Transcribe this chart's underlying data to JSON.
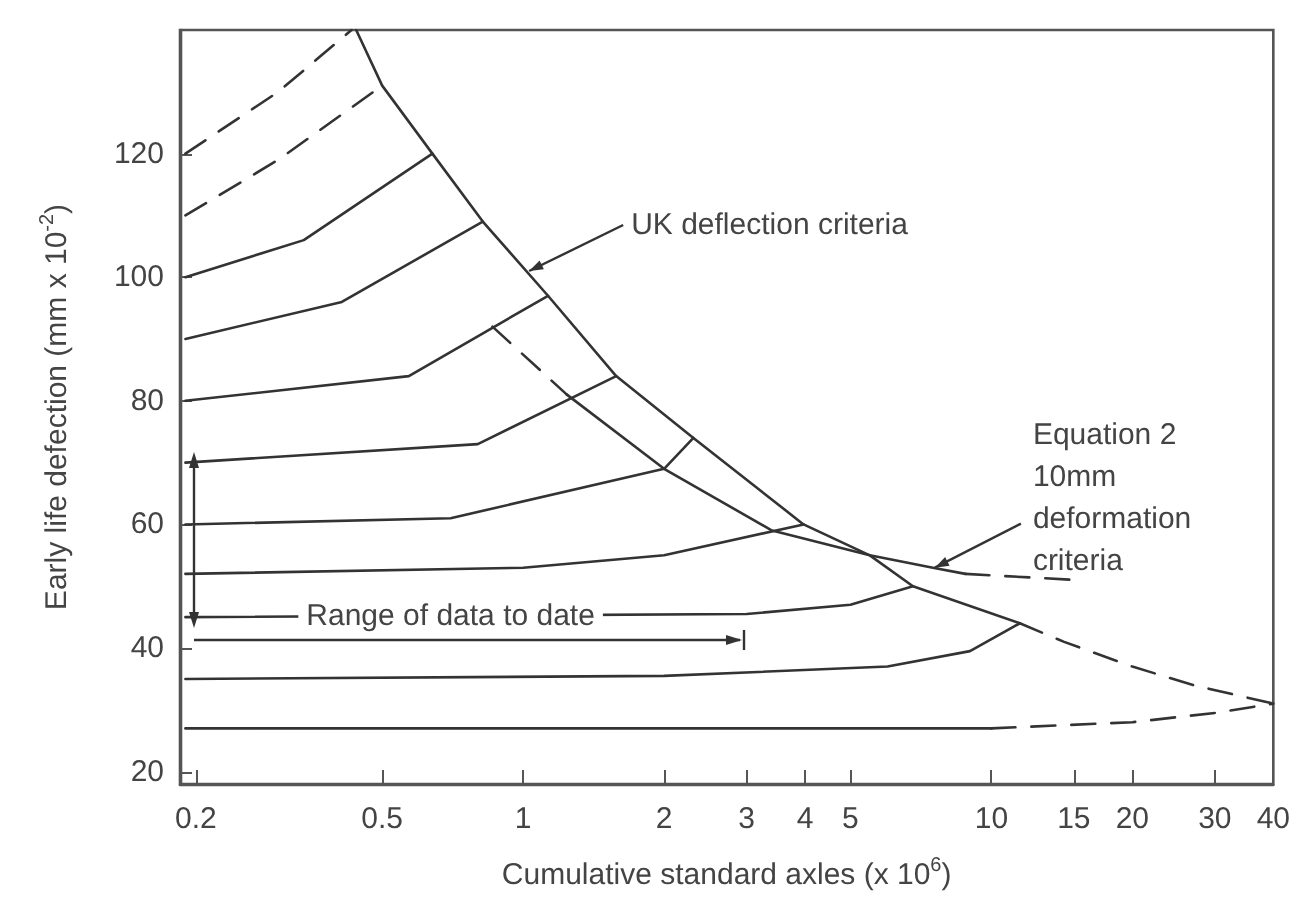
{
  "chart_data": {
    "type": "line",
    "xlabel": "Cumulative standard axles (x 10$^{6}$)",
    "ylabel": "Early life defection (mm x 10$^{-2}$)",
    "log": "x",
    "xlim": [
      0.185,
      40
    ],
    "xticks": [
      0.2,
      0.5,
      1,
      2,
      3,
      4,
      5,
      10,
      15,
      20,
      30,
      40
    ],
    "ylim": [
      18,
      140
    ],
    "yticks": [
      20,
      40,
      60,
      80,
      100,
      120
    ],
    "grid": false,
    "marker": "none",
    "series": [
      {
        "color": "#333333",
        "line_style": "solid",
        "x": [
          0.44,
          0.5,
          0.64,
          0.82,
          1.13,
          1.58,
          2.31,
          3.97,
          5.5,
          6.8,
          11.5
        ],
        "values": [
          140,
          131,
          120,
          109,
          97,
          84,
          74,
          60,
          55,
          50,
          44
        ]
      },
      {
        "color": "#333333",
        "line_style": "dashed",
        "x": [
          11.5,
          14.3,
          20,
          27,
          40
        ],
        "values": [
          44,
          41,
          37,
          34,
          31
        ]
      },
      {
        "color": "#333333",
        "line_style": "dashed",
        "x": [
          0.86,
          1.24
        ],
        "values": [
          92,
          81
        ]
      },
      {
        "color": "#333333",
        "line_style": "solid",
        "x": [
          1.24,
          2,
          3.4,
          5.5,
          7.5,
          8.8
        ],
        "values": [
          81,
          69,
          59,
          55,
          53,
          52
        ]
      },
      {
        "color": "#333333",
        "line_style": "dashed",
        "x": [
          8.8,
          15.2
        ],
        "values": [
          52,
          51
        ]
      },
      {
        "color": "#333333",
        "line_style": "dashed",
        "x": [
          0.19,
          0.3,
          0.43
        ],
        "values": [
          120,
          130,
          140
        ]
      },
      {
        "color": "#333333",
        "line_style": "dashed",
        "x": [
          0.19,
          0.3,
          0.5
        ],
        "values": [
          110,
          119,
          131
        ]
      },
      {
        "color": "#333333",
        "line_style": "solid",
        "x": [
          0.19,
          0.34,
          0.64
        ],
        "values": [
          100,
          106,
          120
        ]
      },
      {
        "color": "#333333",
        "line_style": "solid",
        "x": [
          0.19,
          0.41,
          0.82
        ],
        "values": [
          90,
          96,
          109
        ]
      },
      {
        "color": "#333333",
        "line_style": "solid",
        "x": [
          0.19,
          0.57,
          1.13
        ],
        "values": [
          80,
          84,
          97
        ]
      },
      {
        "color": "#333333",
        "line_style": "solid",
        "x": [
          0.19,
          0.8,
          1.58
        ],
        "values": [
          70,
          73,
          84
        ]
      },
      {
        "color": "#333333",
        "line_style": "solid",
        "x": [
          0.19,
          0.7,
          2,
          2.31
        ],
        "values": [
          60,
          61,
          69,
          74
        ]
      },
      {
        "color": "#333333",
        "line_style": "solid",
        "x": [
          0.19,
          1,
          2,
          3.97
        ],
        "values": [
          52,
          53,
          55,
          60
        ]
      },
      {
        "color": "#333333",
        "line_style": "solid",
        "x": [
          0.19,
          3,
          5,
          6.8
        ],
        "values": [
          45,
          45.5,
          47,
          50
        ]
      },
      {
        "color": "#333333",
        "line_style": "solid",
        "x": [
          0.19,
          2,
          6,
          9,
          11.5
        ],
        "values": [
          35,
          35.5,
          37,
          39.5,
          44
        ]
      },
      {
        "color": "#333333",
        "line_style": "solid",
        "x": [
          0.19,
          10
        ],
        "values": [
          27,
          27
        ]
      },
      {
        "color": "#333333",
        "line_style": "dashed",
        "x": [
          10,
          20,
          30,
          40
        ],
        "values": [
          27,
          28,
          29.5,
          31
        ]
      }
    ],
    "annotations": [
      {
        "text": "UK deflection criteria",
        "x": 1.02,
        "y": 101
      },
      {
        "text": "Equation 2\n10mm\ndeformation\ncriteria",
        "x": 7.5,
        "y": 53
      },
      {
        "text": "Range of data to date",
        "x": 0.7,
        "y": 45.2
      }
    ]
  }
}
